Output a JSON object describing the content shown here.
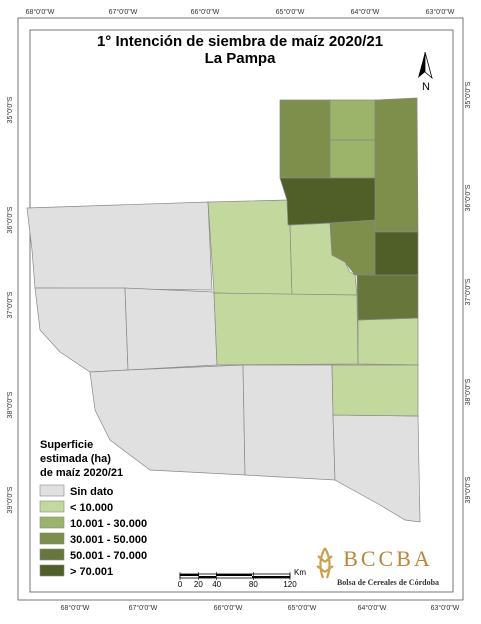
{
  "map": {
    "title": [
      "1° Intención de siembra de maíz 2020/21",
      "La Pampa"
    ],
    "north": "N",
    "coords": {
      "top": [
        "68°0'0\"W",
        "67°0'0\"W",
        "66°0'0\"W",
        "65°0'0\"W",
        "64°0'0\"W",
        "63°0'0\"W"
      ],
      "bottom": [
        "68°0'0\"W",
        "67°0'0\"W",
        "66°0'0\"W",
        "65°0'0\"W",
        "64°0'0\"W",
        "63°0'0\"W"
      ],
      "left": [
        "35°0'0\"S",
        "36°0'0\"S",
        "37°0'0\"S",
        "38°0'0\"S",
        "39°0'0\"S"
      ],
      "right": [
        "35°0'0\"S",
        "36°0'0\"S",
        "37°0'0\"S",
        "38°0'0\"S",
        "39°0'0\"S"
      ]
    },
    "legend": {
      "title": [
        "Superficie",
        "estimada (ha)",
        "de maíz 2020/21"
      ],
      "items": [
        {
          "label": "Sin dato",
          "color": "#e0e0e0"
        },
        {
          "label": "< 10.000",
          "color": "#c3d89c"
        },
        {
          "label": "10.001 - 30.000",
          "color": "#9cb36a"
        },
        {
          "label": "30.001 - 50.000",
          "color": "#7d8f4b"
        },
        {
          "label": "50.001 - 70.000",
          "color": "#67773b"
        },
        {
          "label": "> 70.001",
          "color": "#505e28"
        }
      ]
    },
    "scale": {
      "ticks": [
        0,
        20,
        40,
        80,
        120
      ],
      "unit": "Km"
    },
    "logo": {
      "name": "BCCBA",
      "subtitle": "Bolsa de Cereales de Córdoba"
    }
  }
}
